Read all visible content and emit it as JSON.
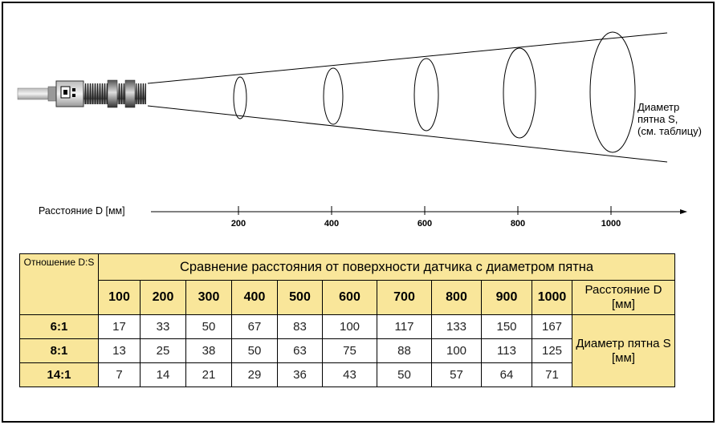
{
  "diagram": {
    "spot_label_lines": [
      "Диаметр",
      "пятна S,",
      "(см. таблицу)"
    ],
    "distance_label": "Расстояние D [мм]",
    "ticks": [
      "200",
      "400",
      "600",
      "800",
      "1000"
    ]
  },
  "table": {
    "ratio_header": "Отношение D:S",
    "title": "Сравнение расстояния от поверхности датчика с диаметром пятна",
    "distances": [
      "100",
      "200",
      "300",
      "400",
      "500",
      "600",
      "700",
      "800",
      "900",
      "1000"
    ],
    "distance_label": "Расстояние D [мм]",
    "spot_label": "Диаметр пятна S [мм]",
    "rows": [
      {
        "ratio": "6:1",
        "values": [
          "17",
          "33",
          "50",
          "67",
          "83",
          "100",
          "117",
          "133",
          "150",
          "167"
        ]
      },
      {
        "ratio": "8:1",
        "values": [
          "13",
          "25",
          "38",
          "50",
          "63",
          "75",
          "88",
          "100",
          "113",
          "125"
        ]
      },
      {
        "ratio": "14:1",
        "values": [
          "7",
          "14",
          "21",
          "29",
          "36",
          "43",
          "50",
          "57",
          "64",
          "71"
        ]
      }
    ]
  }
}
